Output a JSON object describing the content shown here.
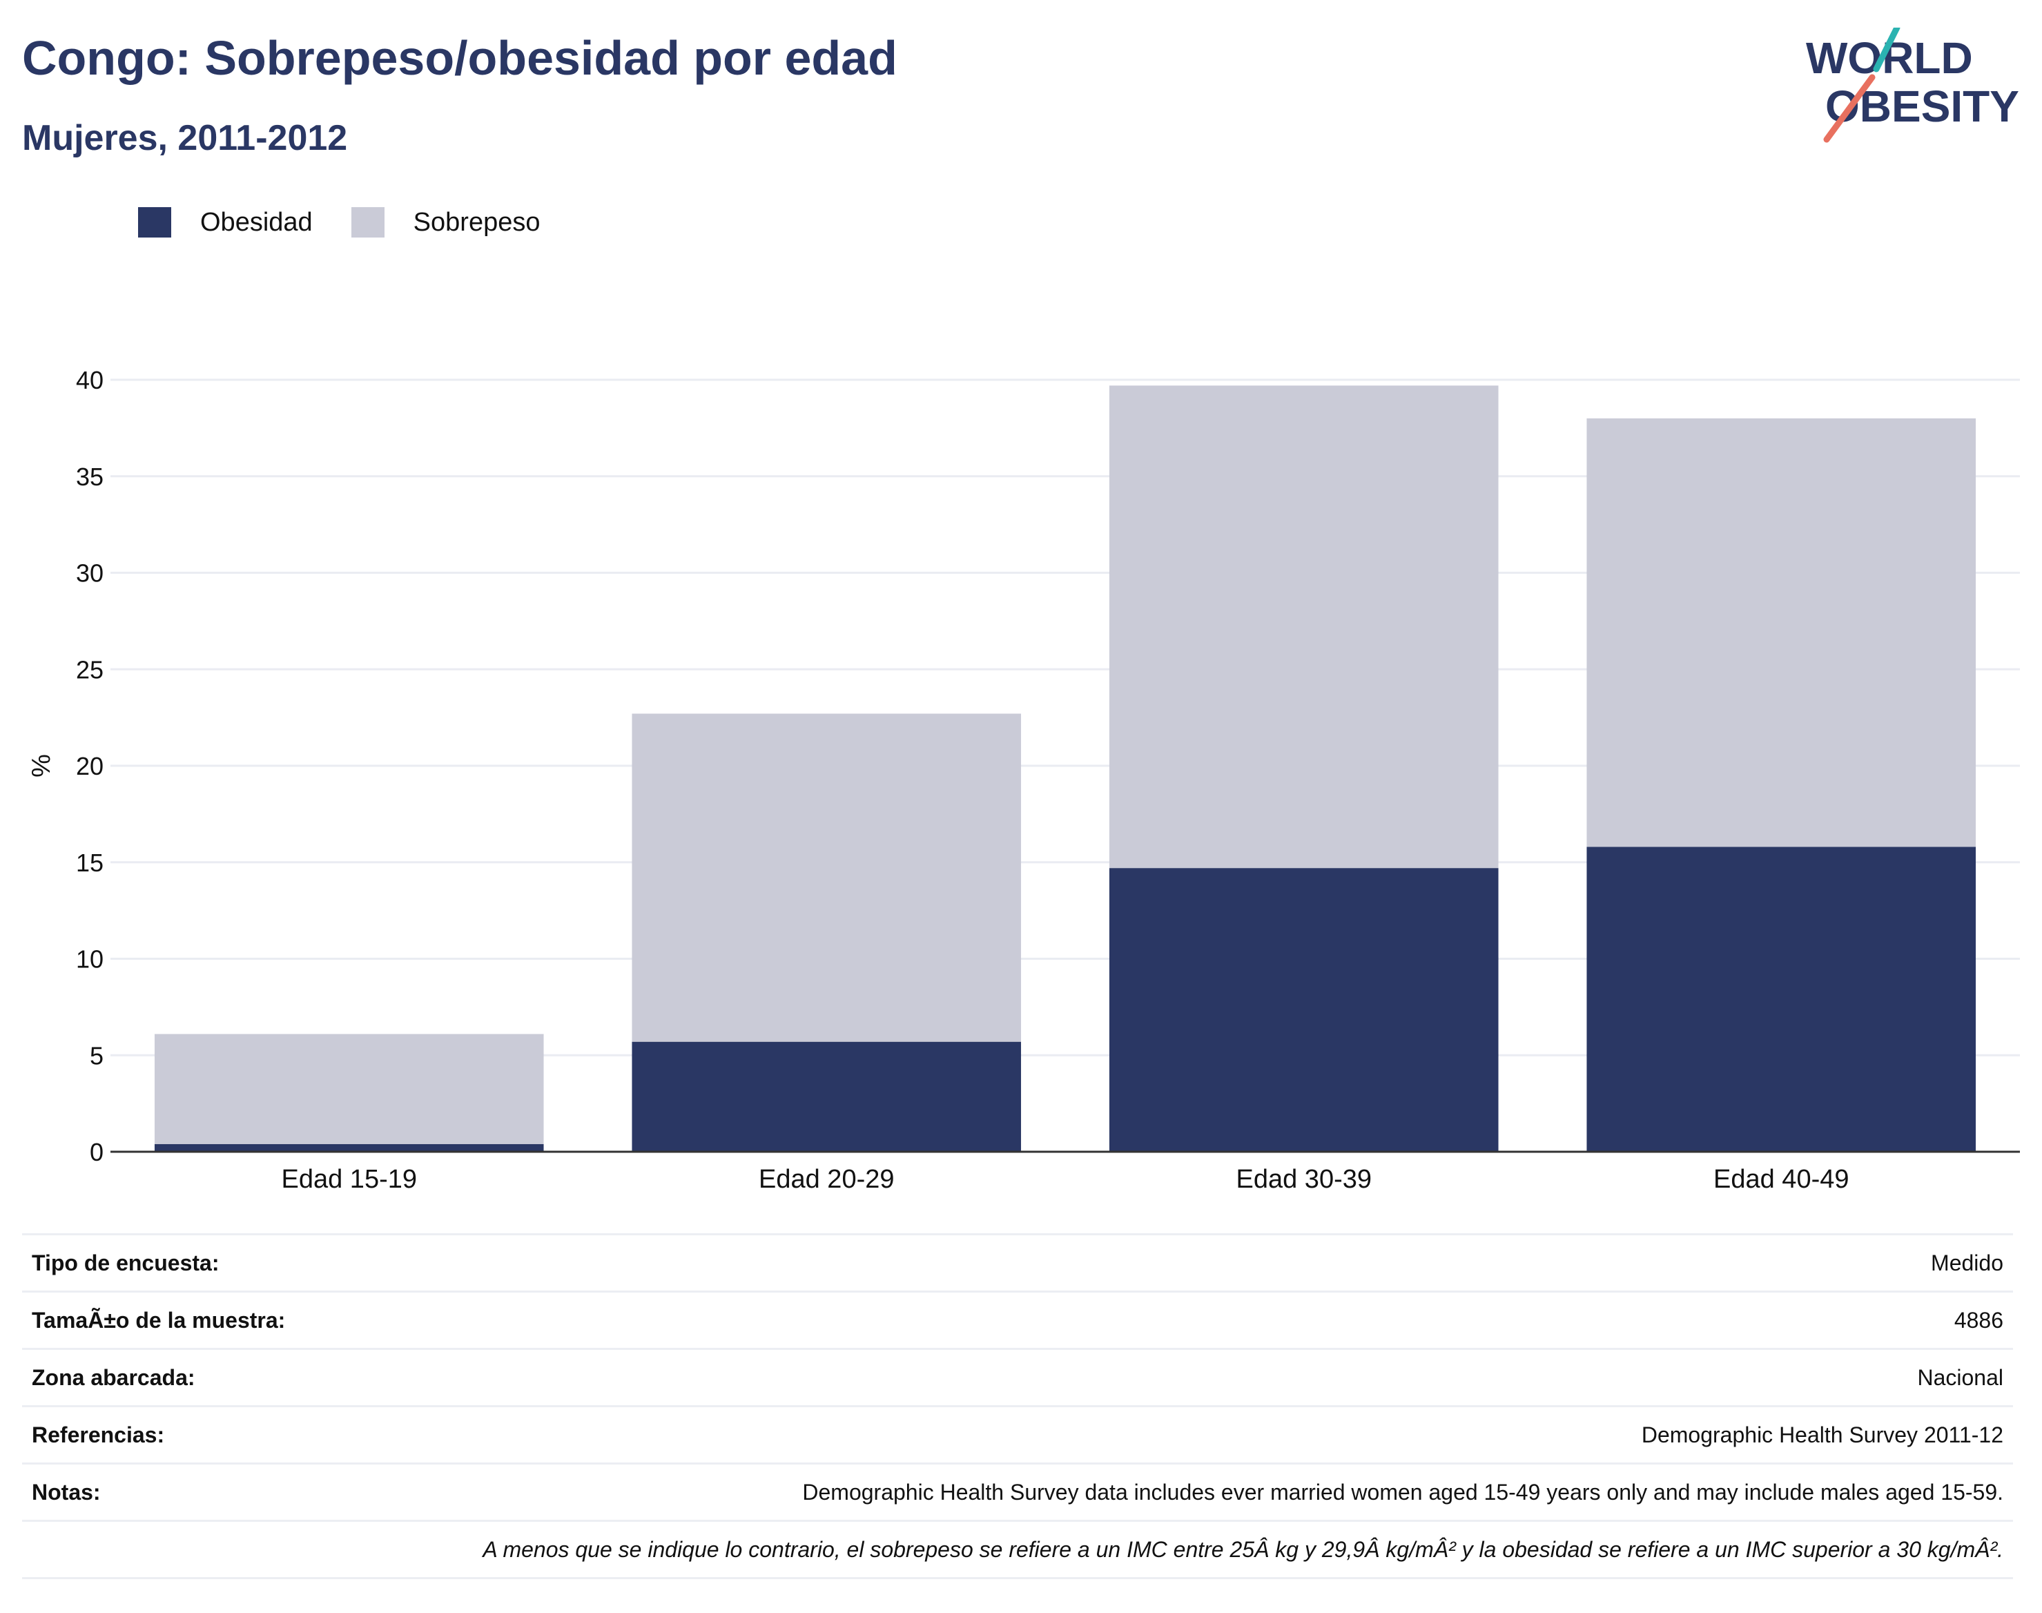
{
  "header": {
    "title": "Congo: Sobrepeso/obesidad por edad",
    "subtitle": "Mujeres, 2011-2012"
  },
  "logo": {
    "line1": "WORLD",
    "line2": "OBESITY"
  },
  "colors": {
    "obesidad": "#2a3764",
    "sobrepeso": "#cacbd7",
    "grid": "#eaecf2",
    "axis": "#333333",
    "logo_teal": "#2bb3b1",
    "logo_coral": "#e8705f"
  },
  "chart_data": {
    "type": "bar",
    "stacked": true,
    "categories": [
      "Edad 15-19",
      "Edad 20-29",
      "Edad 30-39",
      "Edad 40-49"
    ],
    "series": [
      {
        "name": "Obesidad",
        "values": [
          0.4,
          5.7,
          14.7,
          15.8
        ]
      },
      {
        "name": "Sobrepeso",
        "values": [
          5.7,
          17.0,
          25.0,
          22.2
        ]
      }
    ],
    "ylabel": "%",
    "xlabel": "",
    "ylim": [
      0,
      40
    ],
    "yticks": [
      0,
      5,
      10,
      15,
      20,
      25,
      30,
      35,
      40
    ],
    "grid": true,
    "legend_position": "top-left"
  },
  "info": {
    "rows": [
      {
        "label": "Tipo de encuesta:",
        "value": "Medido"
      },
      {
        "label": "TamaÃ±o de la muestra:",
        "value": "4886"
      },
      {
        "label": "Zona abarcada:",
        "value": "Nacional"
      },
      {
        "label": "Referencias:",
        "value": "Demographic Health Survey 2011-12"
      },
      {
        "label": "Notas:",
        "value": "Demographic Health Survey data includes ever married women aged 15-49 years only and may include males aged 15-59."
      }
    ],
    "footnote": "A menos que se indique lo contrario, el sobrepeso se refiere a un IMC entre 25Â kg y 29,9Â kg/mÂ² y la obesidad se refiere a un IMC superior a 30 kg/mÂ²."
  }
}
